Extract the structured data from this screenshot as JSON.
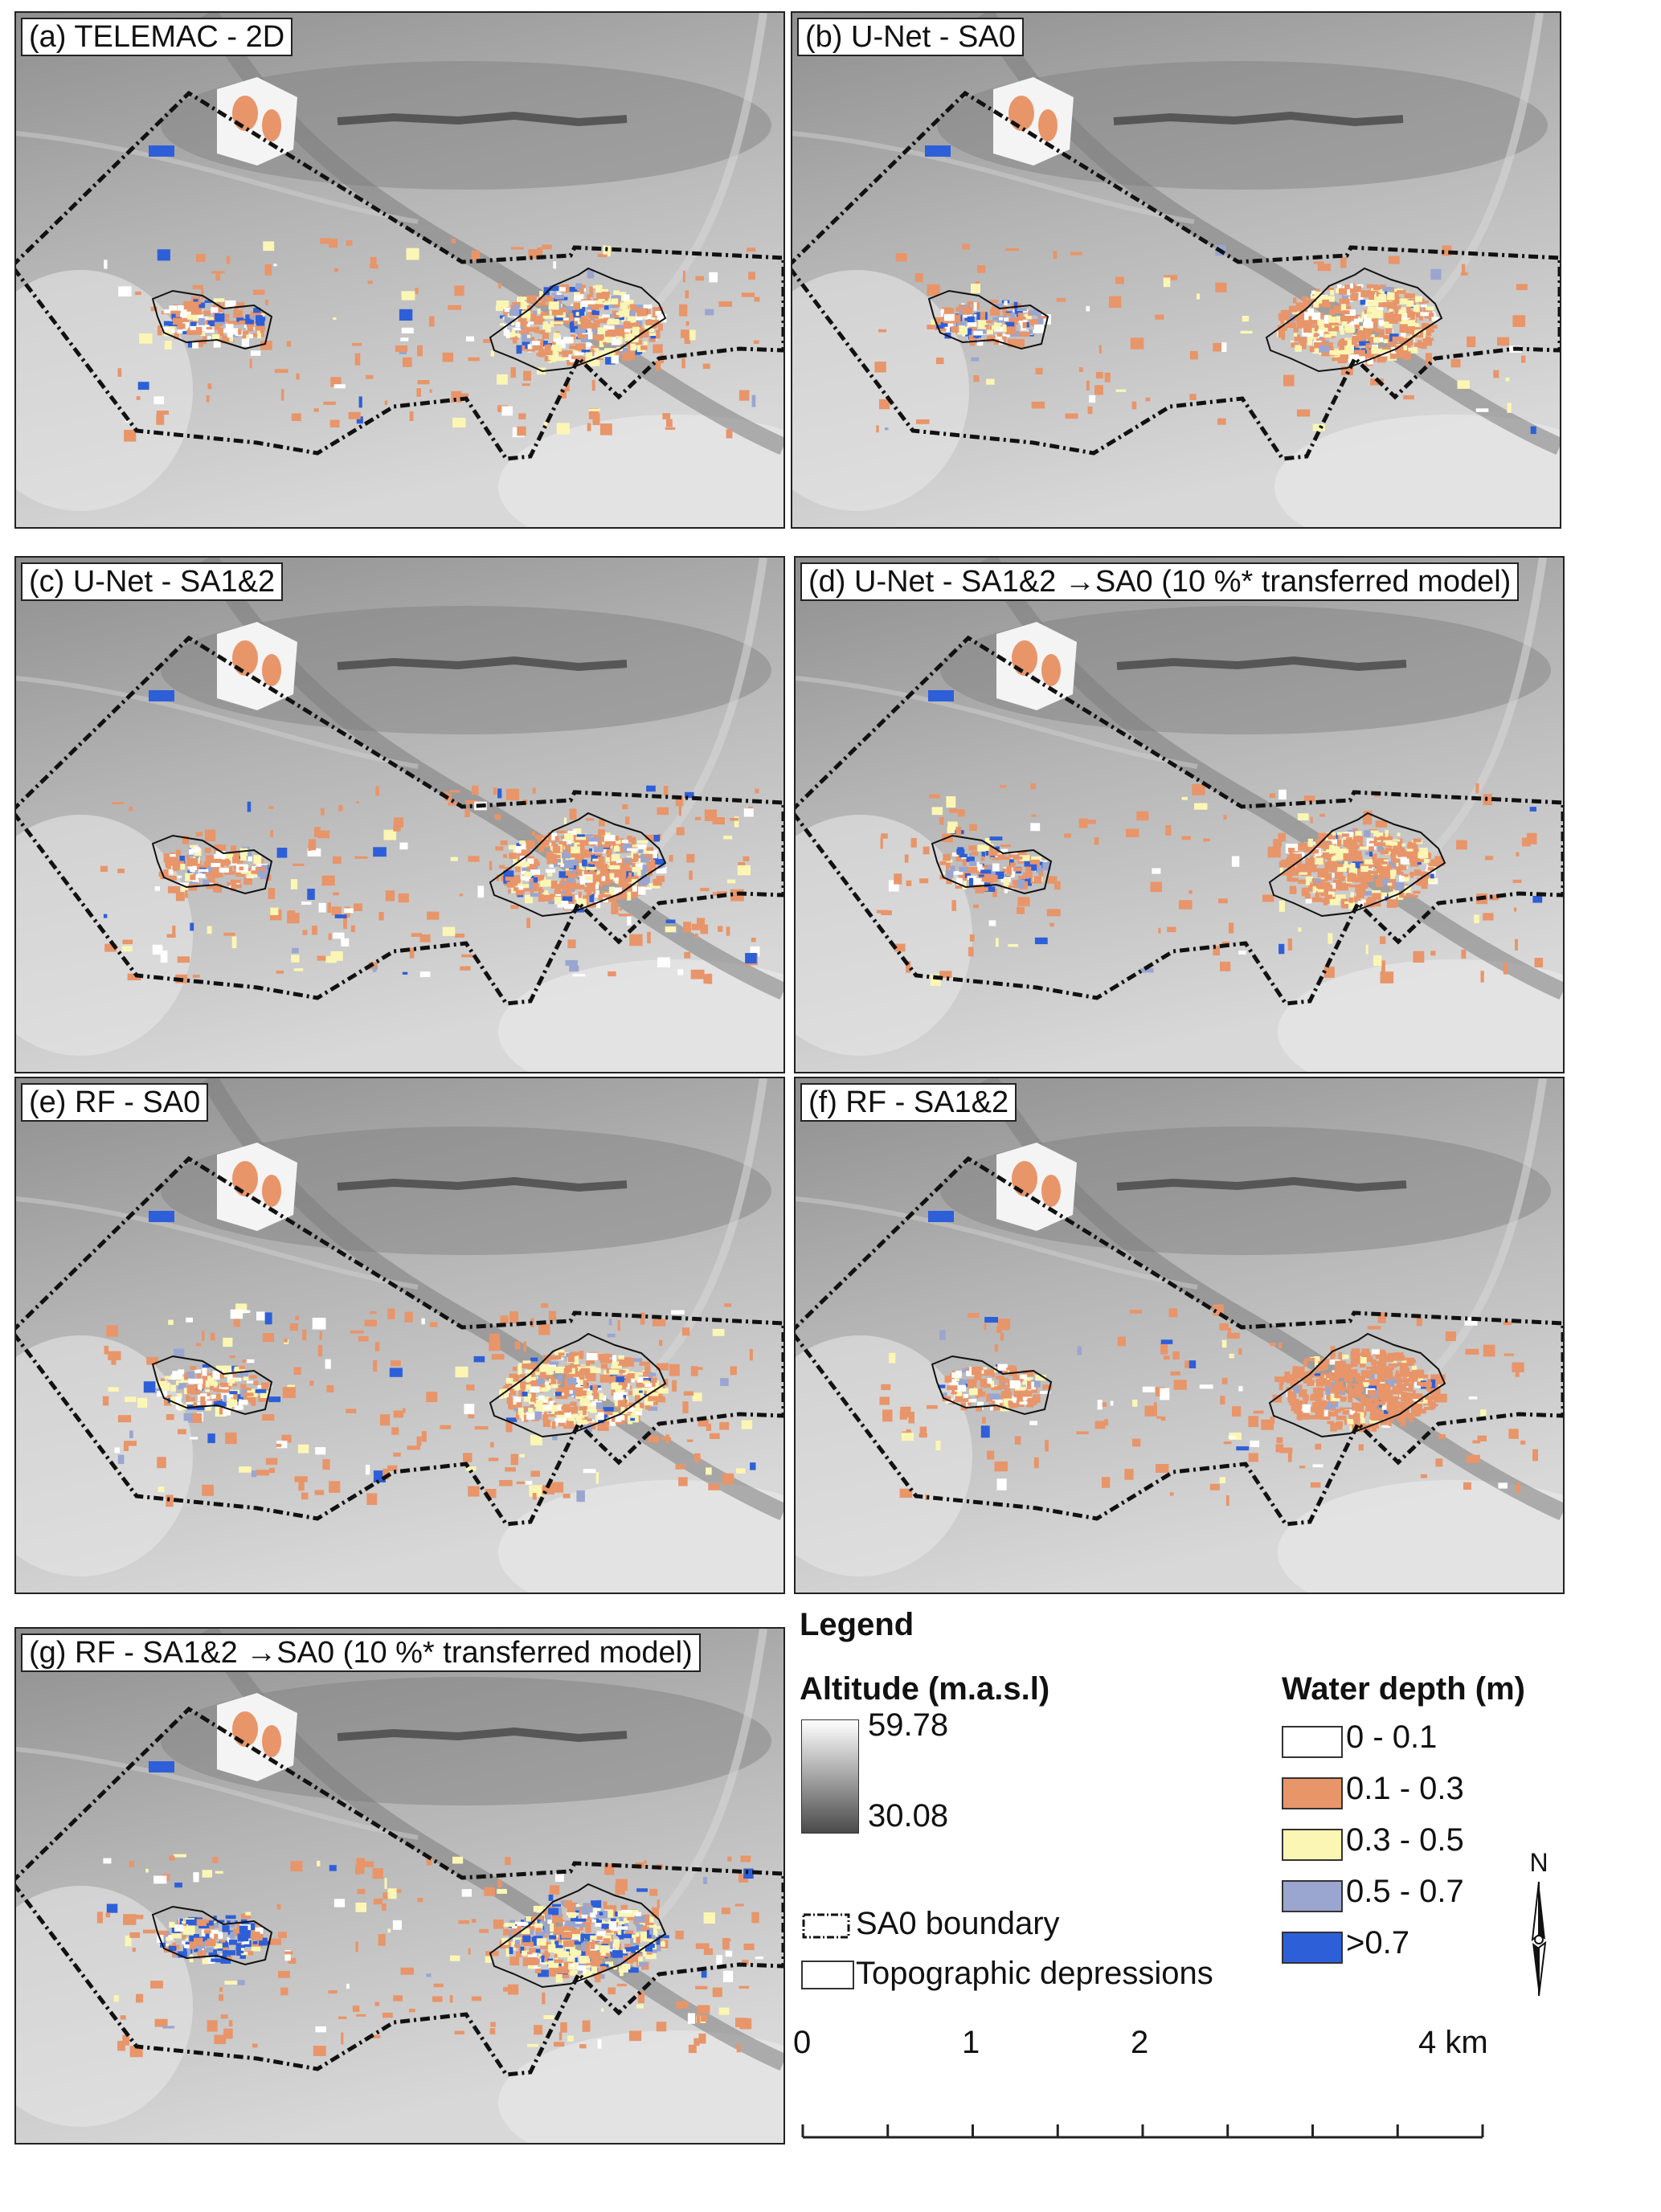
{
  "panels": [
    {
      "label": "(a) TELEMAC - 2D",
      "variant": "a"
    },
    {
      "label": "(b) U-Net - SA0",
      "variant": "b"
    },
    {
      "label": "(c) U-Net - SA1&2",
      "variant": "c"
    },
    {
      "label": "(d) U-Net - SA1&2 →SA0 (10 %* transferred model)",
      "variant": "d"
    },
    {
      "label": "(e) RF - SA0",
      "variant": "e"
    },
    {
      "label": "(f) RF - SA1&2",
      "variant": "f"
    },
    {
      "label": "(g) RF - SA1&2 →SA0 (10 %* transferred model)",
      "variant": "g"
    }
  ],
  "legend": {
    "title": "Legend",
    "altitude": {
      "title": "Altitude (m.a.s.l)",
      "max": "59.78",
      "min": "30.08",
      "color_high": "#ffffff",
      "color_low": "#4a4a4a"
    },
    "boundary_label": "SA0 boundary",
    "depressions_label": "Topographic depressions",
    "water_depth": {
      "title": "Water depth (m)",
      "classes": [
        {
          "label": "0 - 0.1",
          "color": "#ffffff"
        },
        {
          "label": "0.1 - 0.3",
          "color": "#e8956a"
        },
        {
          "label": "0.3 - 0.5",
          "color": "#fbf6b4"
        },
        {
          "label": "0.5 - 0.7",
          "color": "#9aa6d0"
        },
        {
          "label": ">0.7",
          "color": "#2d5fd8"
        }
      ]
    },
    "north_label": "N",
    "scale": {
      "ticks": [
        "0",
        "1",
        "2",
        "4 km"
      ],
      "values_km": [
        0,
        1,
        2,
        4
      ]
    }
  }
}
